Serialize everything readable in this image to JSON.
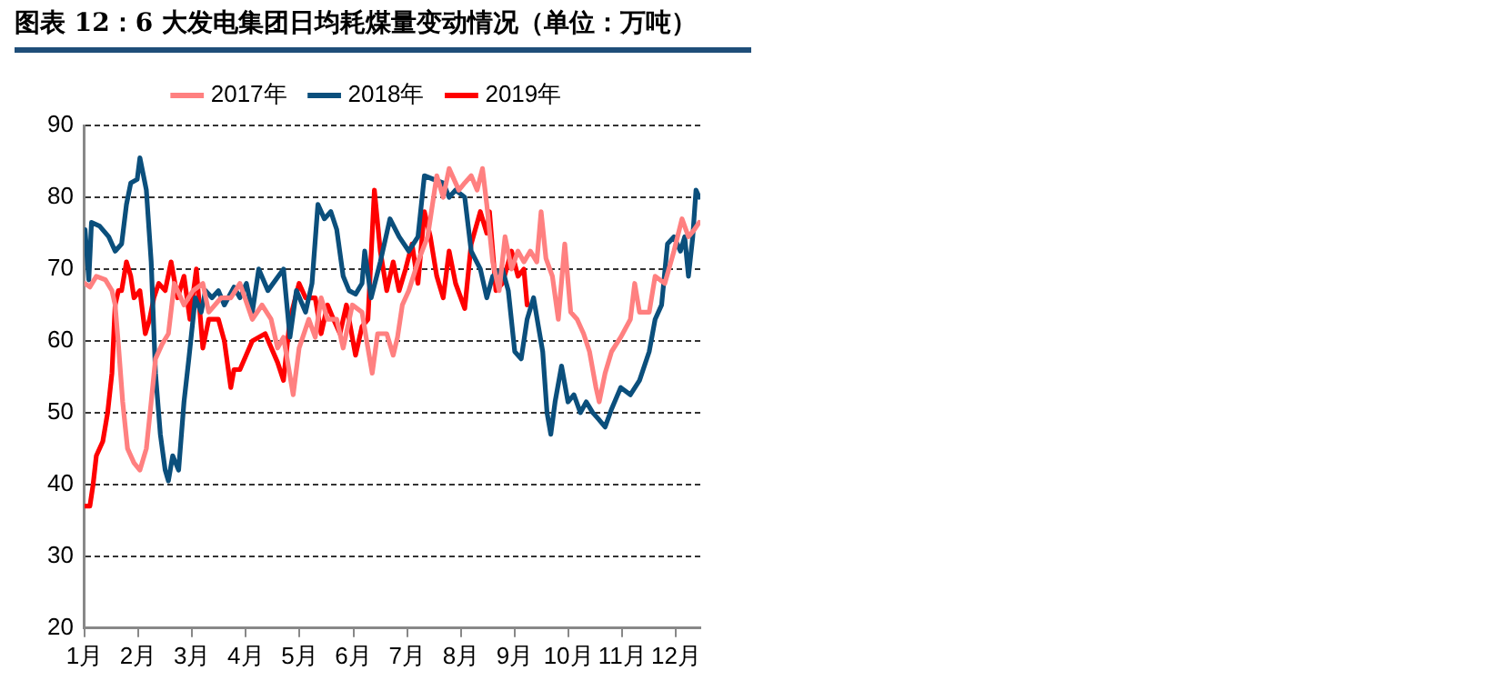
{
  "chart_data": {
    "type": "line",
    "title": "图表 12：6 大发电集团日均耗煤量变动情况（单位：万吨）",
    "xlim": [
      1,
      12.45
    ],
    "xticks": [
      {
        "value": 1,
        "label": "1月"
      },
      {
        "value": 2,
        "label": "2月"
      },
      {
        "value": 3,
        "label": "3月"
      },
      {
        "value": 4,
        "label": "4月"
      },
      {
        "value": 5,
        "label": "5月"
      },
      {
        "value": 6,
        "label": "6月"
      },
      {
        "value": 7,
        "label": "7月"
      },
      {
        "value": 8,
        "label": "8月"
      },
      {
        "value": 9,
        "label": "9月"
      },
      {
        "value": 10,
        "label": "10月"
      },
      {
        "value": 11,
        "label": "11月"
      },
      {
        "value": 12,
        "label": "12月"
      }
    ],
    "ylim": [
      20,
      90
    ],
    "yticks": [
      20,
      30,
      40,
      50,
      60,
      70,
      80,
      90
    ],
    "grid": "y",
    "legend": "top",
    "marker": "none",
    "line_style": "solid",
    "series": [
      {
        "name": "2017年",
        "color": "#ff8080",
        "x": [
          1.01,
          1.1,
          1.22,
          1.39,
          1.51,
          1.57,
          1.63,
          1.71,
          1.8,
          1.92,
          2.03,
          2.15,
          2.24,
          2.32,
          2.44,
          2.56,
          2.67,
          2.85,
          3.02,
          3.2,
          3.31,
          3.54,
          3.72,
          3.89,
          4.12,
          4.3,
          4.47,
          4.59,
          4.7,
          4.88,
          4.99,
          5.17,
          5.29,
          5.4,
          5.52,
          5.69,
          5.81,
          5.98,
          6.16,
          6.27,
          6.35,
          6.45,
          6.62,
          6.74,
          6.82,
          6.91,
          7.03,
          7.2,
          7.38,
          7.55,
          7.67,
          7.78,
          7.96,
          8.07,
          8.19,
          8.3,
          8.4,
          8.48,
          8.59,
          8.71,
          8.82,
          8.94,
          9.06,
          9.17,
          9.29,
          9.41,
          9.49,
          9.58,
          9.7,
          9.81,
          9.93,
          10.04,
          10.16,
          10.28,
          10.39,
          10.51,
          10.57,
          10.68,
          10.8,
          10.97,
          11.15,
          11.23,
          11.32,
          11.5,
          11.61,
          11.79,
          11.96,
          12.11,
          12.23,
          12.34,
          12.43
        ],
        "values": [
          68,
          67.5,
          69,
          68.5,
          67,
          65,
          59.5,
          51.5,
          45,
          43,
          42,
          45,
          51.5,
          57.5,
          59.5,
          61,
          68,
          65,
          67,
          68,
          64,
          66,
          66,
          68,
          63,
          65,
          63,
          59,
          60.5,
          52.5,
          59,
          63,
          60.5,
          66,
          63,
          63,
          59,
          65,
          64,
          59,
          55.5,
          61,
          61,
          58,
          60.5,
          65,
          67,
          71,
          74.5,
          83,
          80,
          84,
          81,
          82,
          83,
          81,
          84,
          79,
          71,
          67,
          74.5,
          70,
          72.5,
          71,
          72.5,
          71,
          78,
          71.5,
          69,
          63,
          73.5,
          64,
          63,
          61,
          58.5,
          53.5,
          51.5,
          55.5,
          58.5,
          60.5,
          63,
          68,
          64,
          64,
          69,
          68,
          72.5,
          77,
          74.5,
          75.5,
          76.5
        ]
      },
      {
        "name": "2018年",
        "color": "#0b4f7c",
        "x": [
          1.01,
          1.08,
          1.13,
          1.28,
          1.45,
          1.57,
          1.69,
          1.78,
          1.86,
          1.98,
          2.03,
          2.15,
          2.24,
          2.32,
          2.41,
          2.5,
          2.56,
          2.64,
          2.75,
          2.85,
          2.94,
          3.06,
          3.17,
          3.25,
          3.37,
          3.49,
          3.6,
          3.78,
          3.89,
          4.01,
          4.12,
          4.24,
          4.41,
          4.7,
          4.82,
          4.94,
          5.11,
          5.23,
          5.34,
          5.46,
          5.58,
          5.69,
          5.81,
          5.92,
          6.04,
          6.16,
          6.21,
          6.33,
          6.5,
          6.68,
          6.85,
          7.03,
          7.2,
          7.32,
          7.49,
          7.67,
          7.78,
          7.9,
          8.07,
          8.19,
          8.36,
          8.48,
          8.59,
          8.77,
          8.88,
          9.0,
          9.12,
          9.23,
          9.35,
          9.44,
          9.52,
          9.6,
          9.67,
          9.75,
          9.87,
          9.99,
          10.1,
          10.22,
          10.33,
          10.45,
          10.57,
          10.68,
          10.8,
          10.97,
          11.15,
          11.32,
          11.5,
          11.61,
          11.73,
          11.84,
          11.96,
          12.08,
          12.16,
          12.23,
          12.31,
          12.37,
          12.43
        ],
        "values": [
          75.5,
          68.5,
          76.5,
          76,
          74.5,
          72.5,
          73.5,
          79,
          82,
          82.5,
          85.5,
          81,
          71,
          55.5,
          47,
          42,
          40.5,
          44,
          42,
          51.5,
          57.5,
          66,
          64,
          67,
          66,
          67,
          65,
          67.5,
          66,
          68,
          64,
          70,
          67,
          70,
          60.5,
          67,
          64,
          68,
          79,
          77,
          78,
          75.5,
          69,
          67,
          66.5,
          68,
          72.5,
          66,
          71,
          77,
          74.5,
          72.5,
          74.5,
          83,
          82.5,
          82,
          80,
          81,
          80,
          72.5,
          70,
          66,
          69,
          70,
          67,
          58.5,
          57.5,
          63,
          66,
          62,
          58.5,
          50,
          47,
          51.5,
          56.5,
          51.5,
          52.5,
          50,
          51.5,
          50,
          49,
          48,
          50.5,
          53.5,
          52.5,
          54.5,
          58.5,
          63,
          65,
          73.5,
          74.5,
          72.5,
          74.5,
          69,
          74.5,
          81,
          80
        ]
      },
      {
        "name": "2019年",
        "color": "#ff0000",
        "x": [
          1.01,
          1.1,
          1.16,
          1.22,
          1.34,
          1.43,
          1.51,
          1.57,
          1.63,
          1.69,
          1.78,
          1.86,
          1.92,
          2.03,
          2.13,
          2.21,
          2.29,
          2.38,
          2.5,
          2.61,
          2.73,
          2.85,
          2.96,
          3.08,
          3.2,
          3.31,
          3.49,
          3.6,
          3.72,
          3.78,
          3.89,
          4.12,
          4.36,
          4.59,
          4.7,
          4.82,
          4.99,
          5.11,
          5.29,
          5.4,
          5.52,
          5.63,
          5.75,
          5.87,
          6.04,
          6.16,
          6.27,
          6.39,
          6.5,
          6.62,
          6.74,
          6.85,
          6.97,
          7.09,
          7.2,
          7.32,
          7.43,
          7.55,
          7.67,
          7.78,
          7.9,
          8.07,
          8.19,
          8.36,
          8.48,
          8.53,
          8.65,
          8.77,
          8.94,
          9.06,
          9.17,
          9.23
        ],
        "values": [
          37,
          37,
          40,
          44,
          46,
          50,
          55.5,
          65,
          67,
          67,
          71,
          69,
          66,
          67,
          61,
          63,
          66,
          68,
          67,
          71,
          66,
          69,
          63,
          70,
          59,
          63,
          63,
          60,
          53.5,
          56,
          56,
          60,
          61,
          57,
          54.5,
          63,
          68,
          66,
          66,
          61,
          65,
          63,
          61,
          65,
          58,
          62,
          63,
          81,
          72.5,
          67,
          71,
          67,
          70,
          73.5,
          68,
          78,
          74.5,
          69,
          66,
          72.5,
          68,
          64.5,
          73.5,
          78,
          75,
          78,
          67,
          68,
          72.5,
          69,
          70,
          65
        ]
      }
    ]
  }
}
